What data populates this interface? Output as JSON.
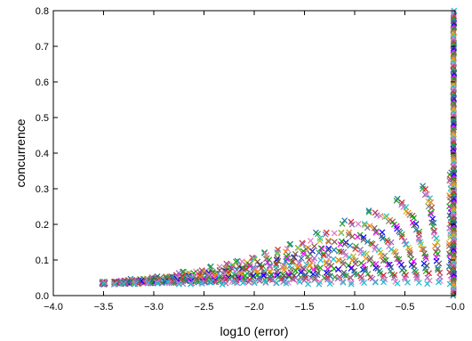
{
  "chart_data": {
    "type": "scatter",
    "title": "",
    "xlabel": "log10 (error)",
    "ylabel": "concurrence",
    "xlim": [
      -4.0,
      0.0
    ],
    "ylim": [
      0.0,
      0.8
    ],
    "x_ticks": [
      "−4.0",
      "−3.5",
      "−3.0",
      "−2.5",
      "−2.0",
      "−1.5",
      "−1.0",
      "−0.5",
      "−0.0"
    ],
    "y_ticks": [
      "0.0",
      "0.1",
      "0.2",
      "0.3",
      "0.4",
      "0.5",
      "0.6",
      "0.7",
      "0.8"
    ],
    "grid": false,
    "marker": "x",
    "palette": [
      "#1f77b4",
      "#2ca02c",
      "#d62728",
      "#9467bd",
      "#e377c2",
      "#17becf",
      "#bcbd22",
      "#ff7f0e",
      "#7f7f7f",
      "#8c564b",
      "#00aa00",
      "#ff00ff",
      "#0000ff",
      "#555555"
    ],
    "description_of_distribution": "Triangular region: points lie between concurrence ~0.03 and an upper edge rising roughly linearly from (-3.5, 0.04) to (-0.05, 0.35); near x=0 a vertical column of points spans concurrence 0 to 0.8",
    "upper_edge": [
      [
        -3.5,
        0.04
      ],
      [
        -3.0,
        0.08
      ],
      [
        -2.5,
        0.12
      ],
      [
        -2.0,
        0.17
      ],
      [
        -1.5,
        0.22
      ],
      [
        -1.0,
        0.27
      ],
      [
        -0.5,
        0.31
      ],
      [
        -0.05,
        0.35
      ]
    ],
    "vertical_column": {
      "x": 0.0,
      "y_range": [
        0.0,
        0.8
      ]
    }
  }
}
